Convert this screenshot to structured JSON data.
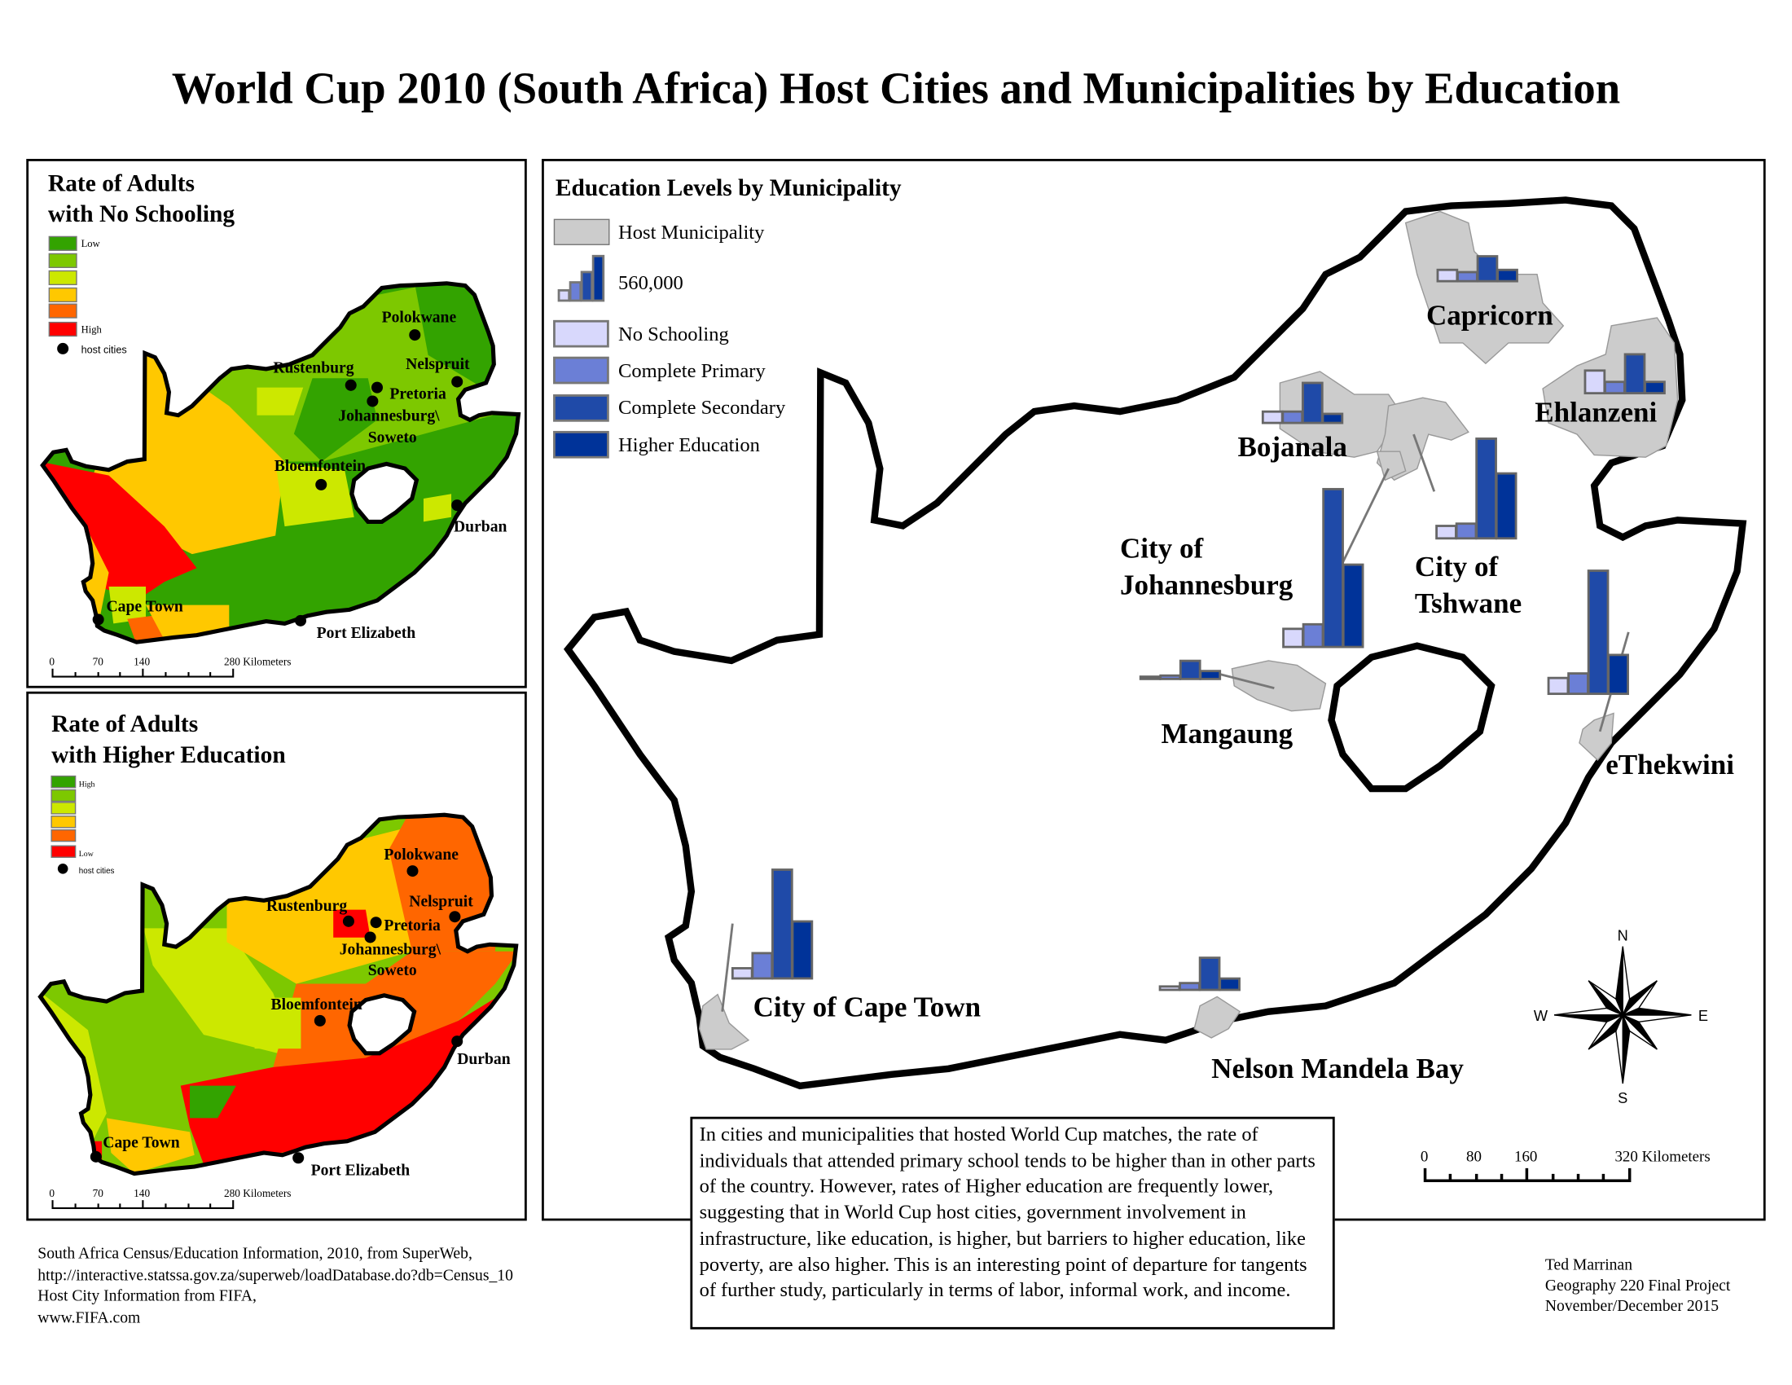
{
  "title": "World Cup 2010 (South Africa) Host Cities and Municipalities by Education",
  "colors": {
    "dark_green": "#33a300",
    "green": "#7dc800",
    "yellow_green": "#cce800",
    "yellow": "#ffc800",
    "orange": "#ff6600",
    "red": "#ff0000",
    "host_municipality": "#cccccc",
    "no_schooling": "#d8d8fc",
    "complete_primary": "#6b7fd6",
    "complete_secondary": "#1f4aa8",
    "higher_education": "#003399"
  },
  "inset_no_schooling": {
    "title_line1": "Rate of Adults",
    "title_line2": "with No Schooling",
    "legend_top": "Low",
    "legend_bottom": "High",
    "legend_host": "host cities",
    "scale_labels": [
      "0",
      "70",
      "140",
      "280 Kilometers"
    ]
  },
  "inset_higher_education": {
    "title_line1": "Rate of Adults",
    "title_line2": "with Higher Education",
    "legend_top": "High",
    "legend_bottom": "Low",
    "legend_host": "host cities",
    "scale_labels": [
      "0",
      "70",
      "140",
      "280 Kilometers"
    ]
  },
  "host_cities": [
    "Polokwane",
    "Rustenburg",
    "Nelspruit",
    "Pretoria",
    "Johannesburg\\",
    "Soweto",
    "Bloemfontein",
    "Durban",
    "Cape Town",
    "Port Elizabeth"
  ],
  "main_map": {
    "legend_title": "Education Levels by Municipality",
    "legend_host": "Host Municipality",
    "legend_size": "560,000",
    "legend_categories": [
      "No Schooling",
      "Complete Primary",
      "Complete Secondary",
      "Higher Education"
    ],
    "municipalities": [
      {
        "name": "Capricorn",
        "values": [
          150000,
          120000,
          330000,
          150000
        ]
      },
      {
        "name": "Ehlanzeni",
        "values": [
          300000,
          150000,
          515000,
          150000
        ]
      },
      {
        "name": "Bojanala",
        "values": [
          150000,
          150000,
          530000,
          120000
        ]
      },
      {
        "name": "City of Johannesburg",
        "line1": "City of",
        "line2": "Johannesburg",
        "values": [
          240000,
          300000,
          2090000,
          1090000
        ]
      },
      {
        "name": "City of Tshwane",
        "line1": "City of",
        "line2": "Tshwane",
        "values": [
          165000,
          195000,
          1320000,
          860000
        ]
      },
      {
        "name": "Mangaung",
        "values": [
          30000,
          45000,
          240000,
          105000
        ]
      },
      {
        "name": "eThekwini",
        "values": [
          210000,
          270000,
          1630000,
          515000
        ]
      },
      {
        "name": "City of Cape Town",
        "values": [
          135000,
          335000,
          1440000,
          755000
        ]
      },
      {
        "name": "Nelson Mandela Bay",
        "values": [
          45000,
          90000,
          425000,
          150000
        ]
      }
    ],
    "compass": {
      "n": "N",
      "s": "S",
      "e": "E",
      "w": "W"
    },
    "scale_labels": [
      "0",
      "80",
      "160",
      "320 Kilometers"
    ]
  },
  "description": "In cities and municipalities that hosted World Cup matches, the rate of individuals that attended primary school tends to be higher than in other parts of the country. However, rates of Higher education are frequently lower, suggesting that in World Cup host cities, government involvement in infrastructure, like education, is higher, but barriers to higher education, like poverty, are also higher. This is an interesting point of departure for tangents of further study, particularly in terms of labor, informal work, and income.",
  "sources": [
    "South Africa Census/Education Information, 2010, from SuperWeb,",
    "http://interactive.statssa.gov.za/superweb/loadDatabase.do?db=Census_10",
    "Host City Information from FIFA,",
    "www.FIFA.com"
  ],
  "author": [
    "Ted Marrinan",
    "Geography 220 Final Project",
    "November/December 2015"
  ]
}
